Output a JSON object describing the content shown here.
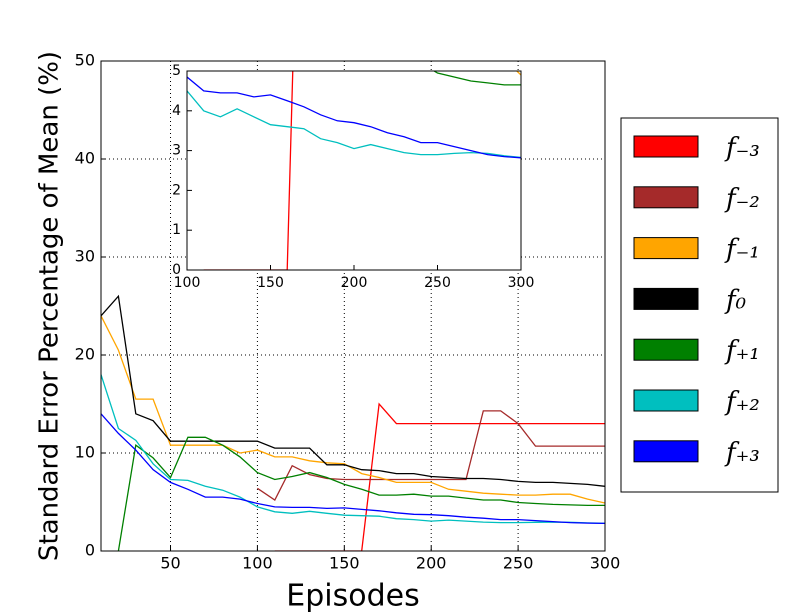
{
  "chart_data": {
    "type": "line",
    "x_label": "Episodes",
    "y_label": "Standard Error Percentage of Mean (%)",
    "x": [
      10,
      20,
      30,
      40,
      50,
      60,
      70,
      80,
      90,
      100,
      110,
      120,
      130,
      140,
      150,
      160,
      170,
      180,
      190,
      200,
      210,
      220,
      230,
      240,
      250,
      260,
      270,
      280,
      290,
      300
    ],
    "xlim": [
      10,
      300
    ],
    "ylim": [
      0,
      50
    ],
    "xticks": [
      50,
      100,
      150,
      200,
      250,
      300
    ],
    "yticks": [
      0,
      10,
      20,
      30,
      40,
      50
    ],
    "grid": true,
    "inset": {
      "xlim": [
        100,
        300
      ],
      "ylim": [
        0,
        5
      ],
      "xticks": [
        100,
        150,
        200,
        250,
        300
      ],
      "yticks": [
        0,
        1,
        2,
        3,
        4,
        5
      ]
    },
    "legend": "right",
    "series": [
      {
        "name": "f₋₃",
        "color": "#ff0000",
        "values": [
          null,
          null,
          null,
          null,
          null,
          null,
          null,
          null,
          null,
          null,
          0,
          0,
          0,
          0,
          0,
          0,
          15,
          13,
          13,
          13,
          13,
          13,
          13,
          13,
          13,
          13,
          13,
          13,
          13,
          13
        ]
      },
      {
        "name": "f₋₂",
        "color": "#a52a2a",
        "values": [
          null,
          null,
          null,
          null,
          null,
          null,
          null,
          null,
          null,
          6.4,
          5.2,
          8.7,
          7.8,
          7.4,
          7.3,
          7.3,
          7.3,
          7.3,
          7.3,
          7.3,
          7.3,
          7.3,
          14.3,
          14.3,
          13,
          10.7,
          10.7,
          10.7,
          10.7,
          10.7
        ]
      },
      {
        "name": "f₋₁",
        "color": "#ffa500",
        "values": [
          24,
          20.5,
          15.5,
          15.5,
          10.8,
          10.8,
          10.8,
          10.8,
          10,
          10.3,
          9.6,
          9.6,
          9.2,
          9,
          8.9,
          7.9,
          7.5,
          7,
          7,
          7,
          6.3,
          6.1,
          5.9,
          5.8,
          5.7,
          5.7,
          5.8,
          5.8,
          5.3,
          4.9
        ]
      },
      {
        "name": "f₀",
        "color": "#000000",
        "values": [
          24,
          26,
          14,
          13.3,
          11.2,
          11.2,
          11.2,
          11.2,
          11.2,
          11.2,
          10.5,
          10.5,
          10.5,
          8.8,
          8.8,
          8.3,
          8.2,
          7.9,
          7.9,
          7.6,
          7.5,
          7.4,
          7.4,
          7.3,
          7.1,
          7,
          7,
          6.9,
          6.8,
          6.6
        ]
      },
      {
        "name": "f₊₁",
        "color": "#008000",
        "values": [
          null,
          0,
          10.8,
          9.5,
          7.5,
          11.6,
          11.6,
          10.8,
          9.6,
          8,
          7.3,
          7.6,
          8,
          7.5,
          6.8,
          6.3,
          5.7,
          5.7,
          5.8,
          5.6,
          5.6,
          5.4,
          5.2,
          5.2,
          4.95,
          4.85,
          4.75,
          4.7,
          4.65,
          4.65
        ]
      },
      {
        "name": "f₊₂",
        "color": "#00bfbf",
        "values": [
          18,
          12.5,
          11.3,
          8.9,
          7.3,
          7.2,
          6.6,
          6.2,
          5.5,
          4.5,
          4,
          3.85,
          4.05,
          3.85,
          3.65,
          3.6,
          3.55,
          3.3,
          3.2,
          3.05,
          3.15,
          3.05,
          2.95,
          2.9,
          2.9,
          2.93,
          2.95,
          2.93,
          2.87,
          2.83
        ]
      },
      {
        "name": "f₊₃",
        "color": "#0000ff",
        "values": [
          14,
          12,
          10.3,
          8.3,
          7,
          6.3,
          5.5,
          5.5,
          5.3,
          4.85,
          4.5,
          4.45,
          4.45,
          4.35,
          4.4,
          4.25,
          4.1,
          3.9,
          3.75,
          3.7,
          3.6,
          3.45,
          3.35,
          3.2,
          3.2,
          3.1,
          3,
          2.9,
          2.85,
          2.82
        ]
      }
    ]
  }
}
